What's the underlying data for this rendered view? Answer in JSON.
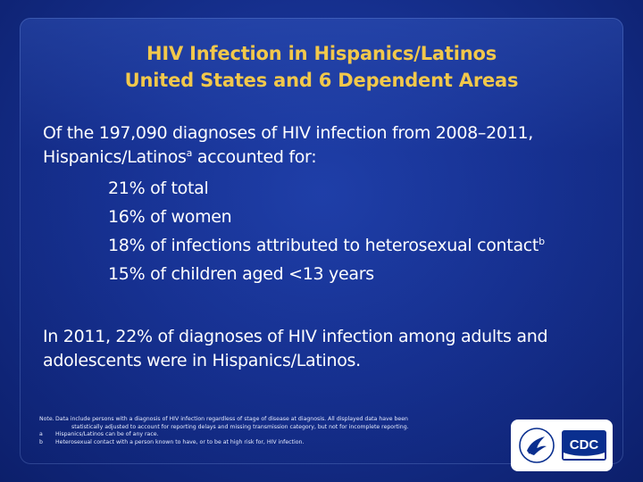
{
  "title": {
    "line1": "HIV Infection in Hispanics/Latinos",
    "line2": "United States and 6 Dependent Areas"
  },
  "intro": {
    "line1": "Of the 197,090 diagnoses of HIV infection from 2008–2011,",
    "line2_text": "Hispanics/Latinos",
    "line2_sup": "a",
    "line2_rest": " accounted for:"
  },
  "items": [
    {
      "text": "21% of total"
    },
    {
      "text": "16% of women"
    },
    {
      "text": "18% of infections attributed to heterosexual contact",
      "sup": "b"
    },
    {
      "text": "15% of children aged <13 years"
    }
  ],
  "closing": {
    "line1": "In 2011, 22% of diagnoses of HIV infection among adults and",
    "line2": "adolescents were in Hispanics/Latinos."
  },
  "notes": {
    "note_label": "Note.",
    "note_line1": "Data include persons with a diagnosis of HIV infection regardless of stage of disease at diagnosis. All displayed data have been",
    "note_line2": "statistically adjusted to account for reporting delays and missing transmission category, but not for incomplete reporting.",
    "a_label": "a",
    "a_text": "Hispanics/Latinos can be of any race.",
    "b_label": "b",
    "b_text": "Heterosexual contact with a person known to have, or to be at high risk for, HIV infection."
  },
  "logo": {
    "cdc_text": "CDC"
  },
  "colors": {
    "title": "#f2c84b",
    "text": "#ffffff",
    "background": "#16308f",
    "cdc_blue": "#0a2f8f"
  }
}
